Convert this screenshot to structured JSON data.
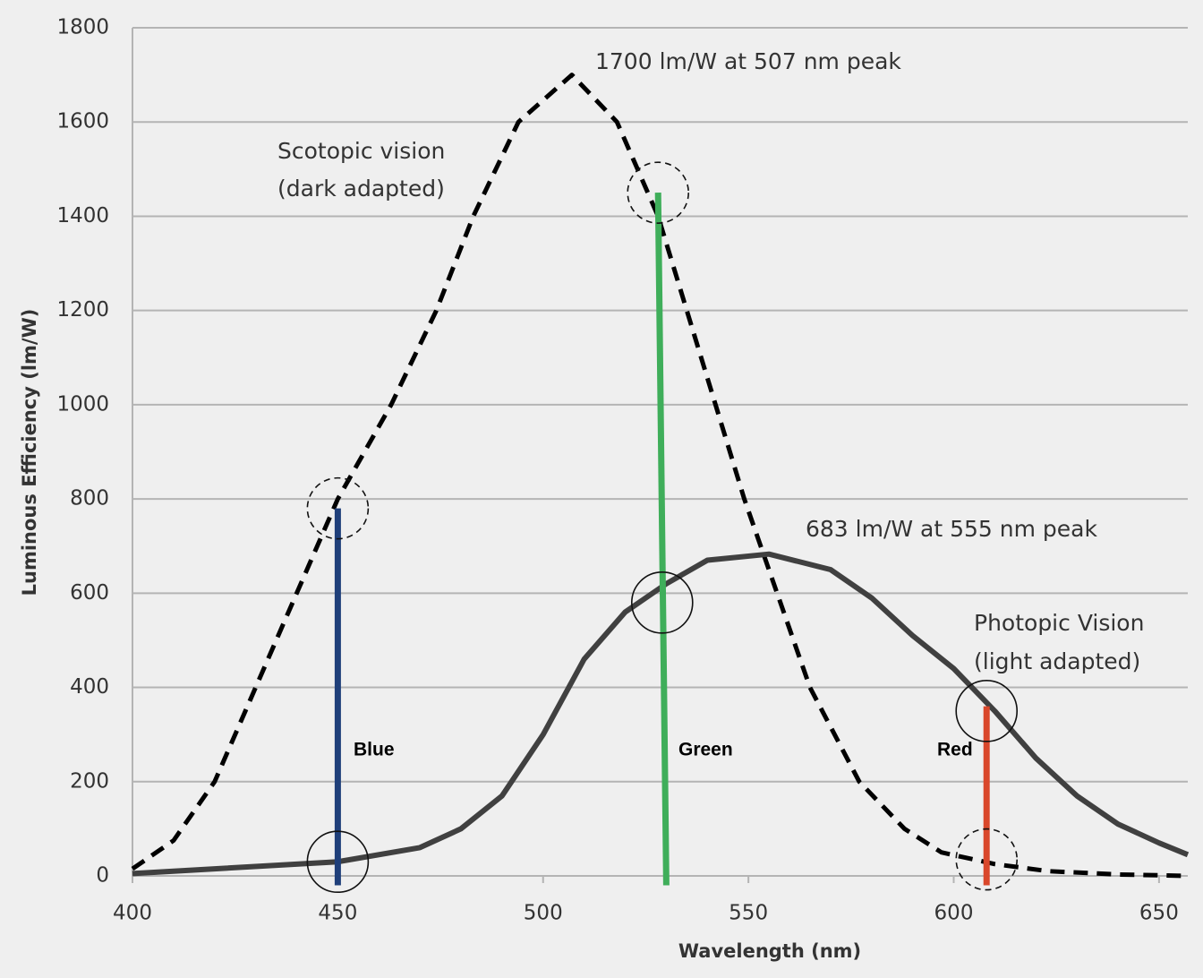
{
  "chart_data": {
    "type": "line",
    "xlabel": "Wavelength (nm)",
    "ylabel": "Luminous  Efficiency (lm/W)",
    "xlim": [
      400,
      657
    ],
    "ylim": [
      0,
      1800
    ],
    "xticks": [
      400,
      450,
      500,
      550,
      600,
      650
    ],
    "yticks": [
      0,
      200,
      400,
      600,
      800,
      1000,
      1200,
      1400,
      1600,
      1800
    ],
    "grid": true,
    "series": [
      {
        "label": [
          "Scotopic vision",
          "(dark adapted)"
        ],
        "color": "#000000",
        "dashed": true,
        "x": [
          400,
          410,
          420,
          430,
          440,
          450,
          463,
          474,
          483,
          494,
          507,
          518,
          528,
          535,
          542,
          549,
          557,
          565,
          577,
          588,
          597,
          610,
          623,
          640,
          657
        ],
        "values": [
          15,
          75,
          200,
          400,
          600,
          800,
          1000,
          1200,
          1400,
          1600,
          1700,
          1600,
          1400,
          1200,
          1000,
          800,
          600,
          400,
          200,
          100,
          50,
          25,
          10,
          3,
          0
        ]
      },
      {
        "label": [
          "Photopic Vision",
          "(light adapted)"
        ],
        "color": "#404040",
        "dashed": false,
        "x": [
          400,
          450,
          470,
          480,
          490,
          500,
          510,
          520,
          530,
          540,
          555,
          570,
          580,
          590,
          600,
          610,
          620,
          630,
          640,
          650,
          657
        ],
        "values": [
          5,
          30,
          60,
          100,
          170,
          300,
          460,
          560,
          620,
          670,
          683,
          650,
          590,
          510,
          440,
          350,
          250,
          170,
          110,
          70,
          45
        ]
      }
    ],
    "spectral_lines": [
      {
        "name": "Blue",
        "color": "#1f3f7a",
        "x": [
          450,
          450
        ],
        "values": [
          780,
          -20
        ]
      },
      {
        "name": "Green",
        "color": "#3fae5a",
        "x": [
          528,
          530
        ],
        "values": [
          1450,
          -20
        ]
      },
      {
        "name": "Red",
        "color": "#d9472b",
        "x": [
          608,
          608
        ],
        "values": [
          360,
          -20
        ]
      }
    ],
    "circled_points": [
      {
        "x": 450,
        "value": 780,
        "dashed": true
      },
      {
        "x": 450,
        "value": 30,
        "dashed": false
      },
      {
        "x": 528,
        "value": 1450,
        "dashed": true
      },
      {
        "x": 529,
        "value": 580,
        "dashed": false
      },
      {
        "x": 608,
        "value": 350,
        "dashed": false
      },
      {
        "x": 608,
        "value": 35,
        "dashed": true
      }
    ],
    "annotations": [
      "1700 lm/W at 507 nm peak",
      "683 lm/W at 555 nm peak"
    ]
  }
}
